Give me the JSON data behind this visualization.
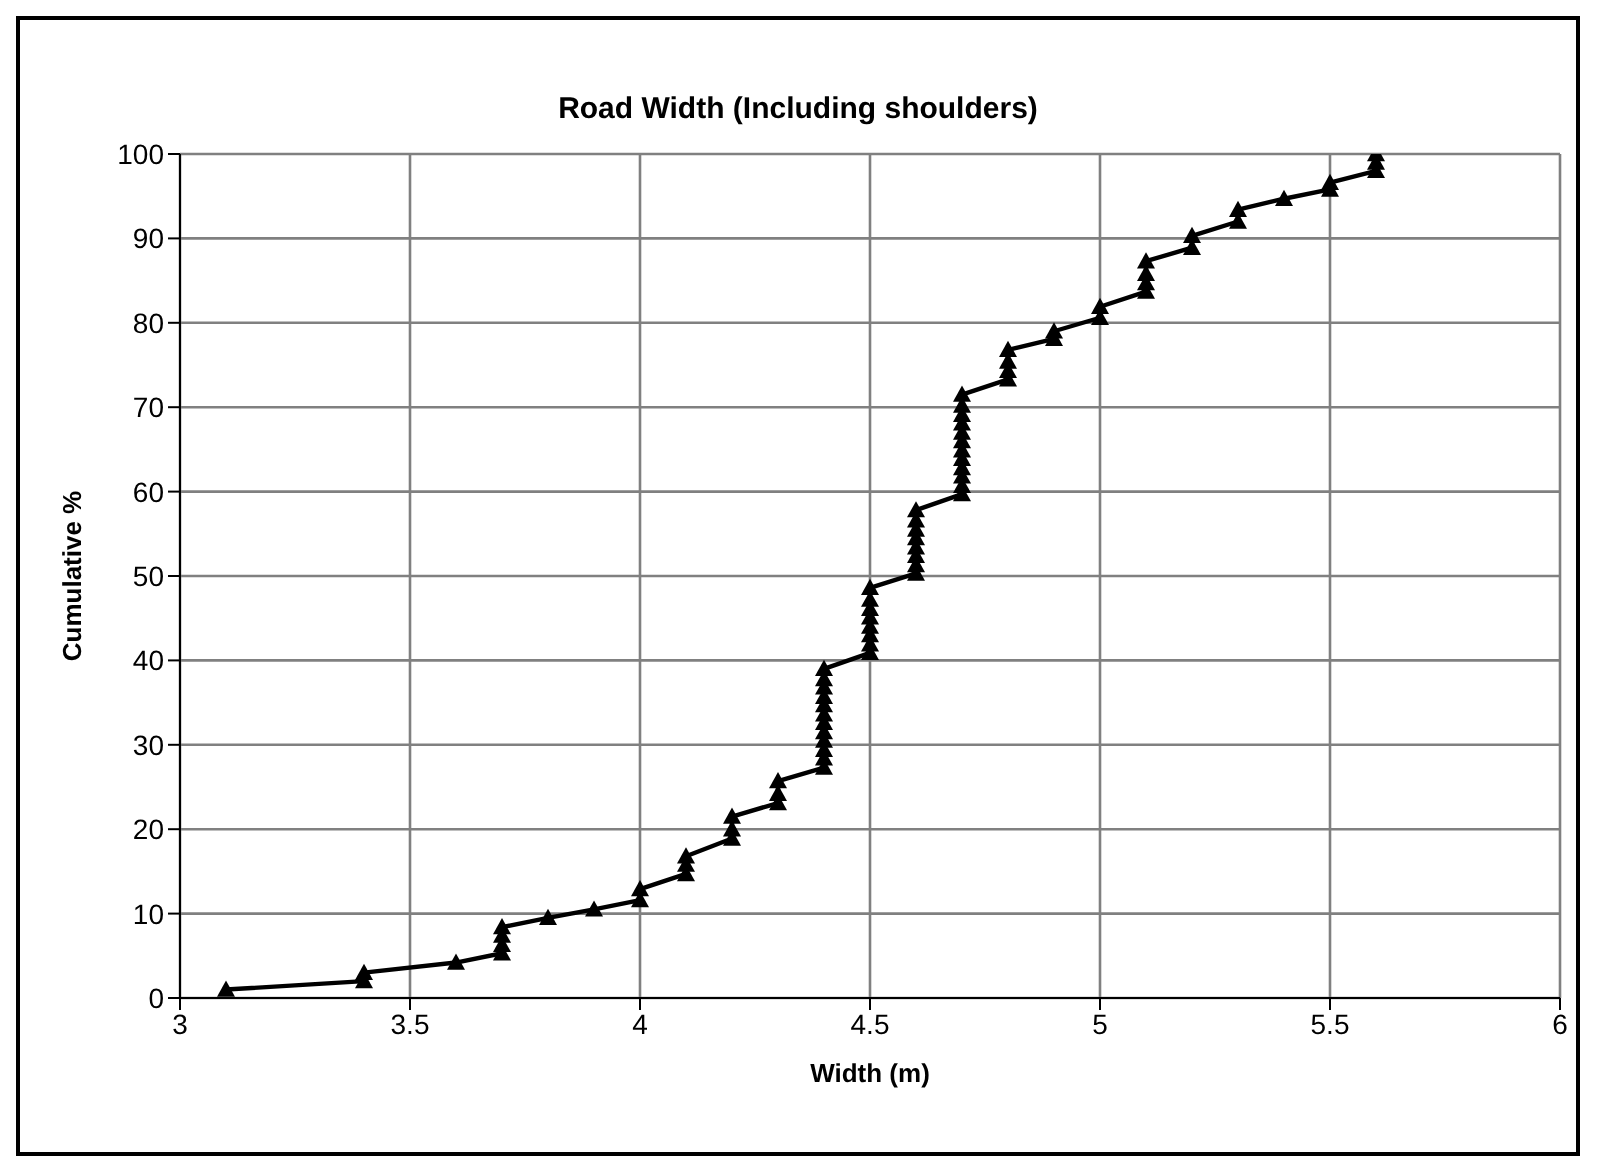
{
  "chart_data": {
    "type": "line",
    "title": "Road Width (Including shoulders)",
    "xlabel": "Width (m)",
    "ylabel": "Cumulative %",
    "x": [
      3.1,
      3.4,
      3.4,
      3.6,
      3.7,
      3.7,
      3.7,
      3.7,
      3.8,
      3.9,
      4.0,
      4.0,
      4.1,
      4.1,
      4.1,
      4.2,
      4.2,
      4.2,
      4.3,
      4.3,
      4.3,
      4.4,
      4.4,
      4.4,
      4.4,
      4.4,
      4.4,
      4.4,
      4.4,
      4.4,
      4.4,
      4.4,
      4.4,
      4.5,
      4.5,
      4.5,
      4.5,
      4.5,
      4.5,
      4.5,
      4.5,
      4.6,
      4.6,
      4.6,
      4.6,
      4.6,
      4.6,
      4.6,
      4.6,
      4.7,
      4.7,
      4.7,
      4.7,
      4.7,
      4.7,
      4.7,
      4.7,
      4.7,
      4.7,
      4.7,
      4.7,
      4.8,
      4.8,
      4.8,
      4.8,
      4.9,
      4.9,
      5.0,
      5.0,
      5.1,
      5.1,
      5.1,
      5.1,
      5.2,
      5.2,
      5.3,
      5.3,
      5.4,
      5.5,
      5.5,
      5.6,
      5.6,
      5.6
    ],
    "series": [
      {
        "color": "#000000",
        "values": [
          1,
          2,
          3,
          4.2,
          5.3,
          6.3,
          7.4,
          8.4,
          9.5,
          10.5,
          11.6,
          12.9,
          14.7,
          15.8,
          16.8,
          18.9,
          20,
          21.5,
          23.1,
          24.2,
          25.7,
          27.3,
          28.4,
          29.4,
          30.5,
          31.5,
          32.6,
          33.6,
          34.7,
          35.7,
          36.8,
          37.8,
          39,
          40.9,
          41.9,
          43,
          44,
          45.1,
          46.1,
          47.2,
          48.6,
          50.3,
          51.3,
          52.4,
          53.4,
          54.5,
          55.5,
          56.6,
          57.8,
          59.7,
          60.7,
          61.8,
          62.8,
          63.9,
          64.9,
          66,
          67,
          68.1,
          69.1,
          70.2,
          71.5,
          73.3,
          74.3,
          75.4,
          76.8,
          78.1,
          79,
          80.6,
          81.9,
          83.7,
          84.7,
          85.8,
          87.3,
          88.9,
          90.3,
          92,
          93.4,
          94.7,
          95.8,
          96.6,
          98,
          99,
          100
        ]
      }
    ],
    "xlim": [
      3,
      6
    ],
    "xticks": [
      3,
      3.5,
      4,
      4.5,
      5,
      5.5,
      6
    ],
    "ylim": [
      0,
      100
    ],
    "yticks": [
      0,
      10,
      20,
      30,
      40,
      50,
      60,
      70,
      80,
      90,
      100
    ],
    "grid": true,
    "legend": false,
    "marker": "triangle",
    "line_style": "solid"
  }
}
